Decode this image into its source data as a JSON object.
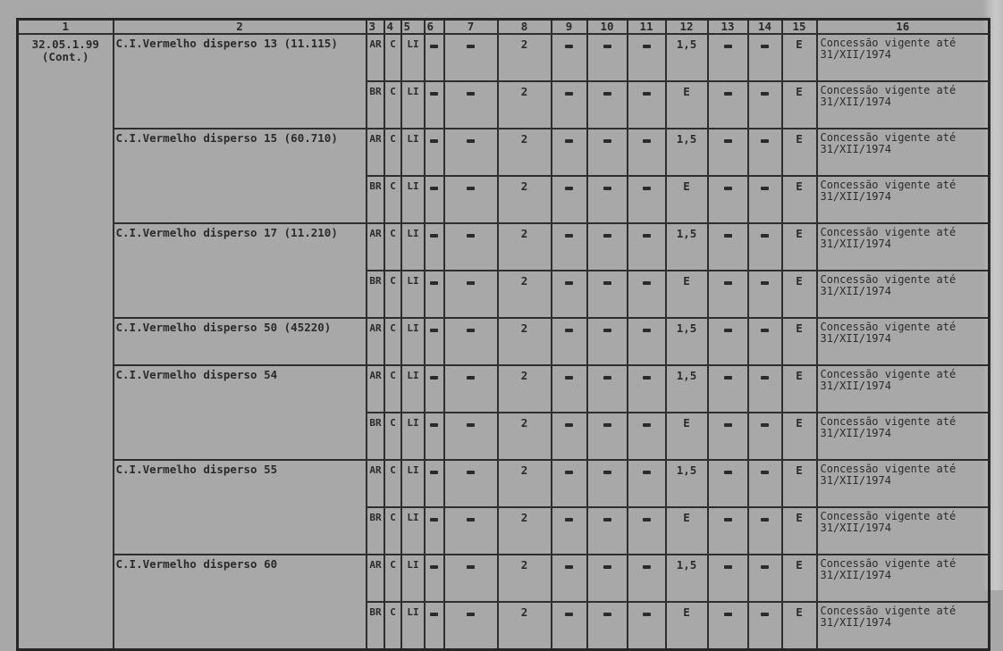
{
  "headers": [
    "1",
    "2",
    "3",
    "4",
    "5",
    "6",
    "7",
    "8",
    "9",
    "10",
    "11",
    "12",
    "13",
    "14",
    "15",
    "16"
  ],
  "code": {
    "number": "32.05.1.99",
    "note": "(Cont.)"
  },
  "groups": [
    {
      "name": "C.I.Vermelho disperso 13 (11.115)",
      "rows": [
        [
          "AR",
          "C",
          "LI",
          "-",
          "-",
          "2",
          "-",
          "-",
          "-",
          "1,5",
          "-",
          "-",
          "E",
          "Concessão vigente até",
          "31/XII/1974"
        ],
        [
          "BR",
          "C",
          "LI",
          "-",
          "-",
          "2",
          "-",
          "-",
          "-",
          "E",
          "-",
          "-",
          "E",
          "Concessão vigente até",
          "31/XII/1974"
        ]
      ]
    },
    {
      "name": "C.I.Vermelho disperso 15 (60.710)",
      "rows": [
        [
          "AR",
          "C",
          "LI",
          "-",
          "-",
          "2",
          "-",
          "-",
          "-",
          "1,5",
          "-",
          "-",
          "E",
          "Concessão vigente até",
          "31/XII/1974"
        ],
        [
          "BR",
          "C",
          "LI",
          "-",
          "-",
          "2",
          "-",
          "-",
          "-",
          "E",
          "-",
          "-",
          "E",
          "Concessão vigente até",
          "31/XII/1974"
        ]
      ]
    },
    {
      "name": "C.I.Vermelho disperso 17 (11.210)",
      "rows": [
        [
          "AR",
          "C",
          "LI",
          "-",
          "-",
          "2",
          "-",
          "-",
          "-",
          "1,5",
          "-",
          "-",
          "E",
          "Concessão vigente até",
          "31/XII/1974"
        ],
        [
          "BR",
          "C",
          "LI",
          "-",
          "-",
          "2",
          "-",
          "-",
          "-",
          "E",
          "-",
          "-",
          "E",
          "Concessão vigente até",
          "31/XII/1974"
        ]
      ]
    },
    {
      "name": "C.I.Vermelho disperso 50 (45220)",
      "rows": [
        [
          "AR",
          "C",
          "LI",
          "-",
          "-",
          "2",
          "-",
          "-",
          "-",
          "1,5",
          "-",
          "-",
          "E",
          "Concessão vigente até",
          "31/XII/1974"
        ]
      ]
    },
    {
      "name": "C.I.Vermelho disperso 54",
      "rows": [
        [
          "AR",
          "C",
          "LI",
          "-",
          "-",
          "2",
          "-",
          "-",
          "-",
          "1,5",
          "-",
          "-",
          "E",
          "Concessão vigente até",
          "31/XII/1974"
        ],
        [
          "BR",
          "C",
          "LI",
          "-",
          "-",
          "2",
          "-",
          "-",
          "-",
          "E",
          "-",
          "-",
          "E",
          "Concessão vigente até",
          "31/XII/1974"
        ]
      ]
    },
    {
      "name": "C.I.Vermelho disperso 55",
      "rows": [
        [
          "AR",
          "C",
          "LI",
          "-",
          "-",
          "2",
          "-",
          "-",
          "-",
          "1,5",
          "-",
          "-",
          "E",
          "Concessão vigente até",
          "31/XII/1974"
        ],
        [
          "BR",
          "C",
          "LI",
          "-",
          "-",
          "2",
          "-",
          "-",
          "-",
          "E",
          "-",
          "-",
          "E",
          "Concessão vigente até",
          "31/XII/1974"
        ]
      ]
    },
    {
      "name": "C.I.Vermelho disperso 60",
      "rows": [
        [
          "AR",
          "C",
          "LI",
          "-",
          "-",
          "2",
          "-",
          "-",
          "-",
          "1,5",
          "-",
          "-",
          "E",
          "Concessão vigente até",
          "31/XII/1974"
        ],
        [
          "BR",
          "C",
          "LI",
          "-",
          "-",
          "2",
          "-",
          "-",
          "-",
          "E",
          "-",
          "-",
          "E",
          "Concessão vigente até",
          "31/XII/1974"
        ]
      ]
    }
  ]
}
